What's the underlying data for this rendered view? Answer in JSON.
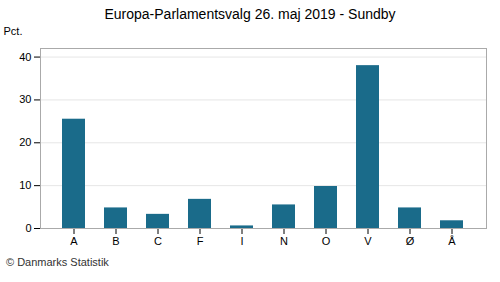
{
  "chart_data": {
    "type": "bar",
    "title": "Europa-Parlamentsvalg 26. maj 2019 - Sundby",
    "categories": [
      "A",
      "B",
      "C",
      "F",
      "I",
      "N",
      "O",
      "V",
      "Ø",
      "Å"
    ],
    "values": [
      25.5,
      4.8,
      3.3,
      6.8,
      0.6,
      5.5,
      9.8,
      38.0,
      4.8,
      1.8
    ],
    "color": "#1a6b8a",
    "ylabel": "Pct.",
    "ylim": [
      0,
      42
    ],
    "yticks": [
      0,
      10,
      20,
      30,
      40
    ],
    "grid": true,
    "caption": "© Danmarks Statistik"
  }
}
